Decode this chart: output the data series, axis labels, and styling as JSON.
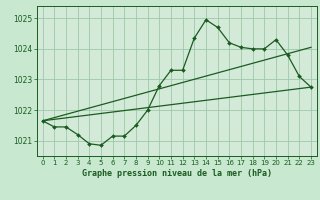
{
  "title": "Graphe pression niveau de la mer (hPa)",
  "background_color": "#c8e8d0",
  "plot_bg_color": "#d4ead8",
  "grid_color": "#9ec8a8",
  "line_color": "#1a5c20",
  "marker_color": "#1a5c20",
  "xlim": [
    -0.5,
    23.5
  ],
  "ylim": [
    1020.5,
    1025.4
  ],
  "yticks": [
    1021,
    1022,
    1023,
    1024,
    1025
  ],
  "xticks": [
    0,
    1,
    2,
    3,
    4,
    5,
    6,
    7,
    8,
    9,
    10,
    11,
    12,
    13,
    14,
    15,
    16,
    17,
    18,
    19,
    20,
    21,
    22,
    23
  ],
  "line1_x": [
    0,
    1,
    2,
    3,
    4,
    5,
    6,
    7,
    8,
    9,
    10,
    11,
    12,
    13,
    14,
    15,
    16,
    17,
    18,
    19,
    20,
    21,
    22,
    23
  ],
  "line1_y": [
    1021.65,
    1021.45,
    1021.45,
    1021.2,
    1020.9,
    1020.85,
    1021.15,
    1021.15,
    1021.5,
    1022.0,
    1022.8,
    1023.3,
    1023.3,
    1024.35,
    1024.95,
    1024.7,
    1024.2,
    1024.05,
    1024.0,
    1024.0,
    1024.3,
    1023.8,
    1023.1,
    1022.75
  ],
  "line2_x": [
    0,
    23
  ],
  "line2_y": [
    1021.65,
    1022.75
  ],
  "line3_x": [
    0,
    23
  ],
  "line3_y": [
    1021.65,
    1024.05
  ]
}
